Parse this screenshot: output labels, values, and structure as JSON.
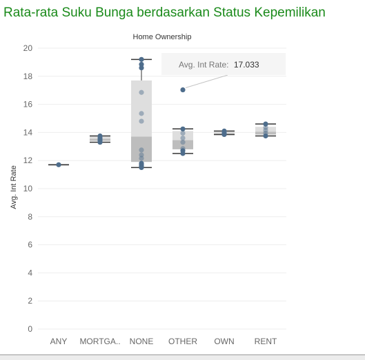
{
  "title": "Rata-rata Suku Bunga berdasarkan Status Kepemilikan",
  "colors": {
    "title": "#1a8a1a",
    "point": "#4e6d8c",
    "box_upper": "#dedede",
    "box_lower": "#bdbdbd",
    "whisker": "#333333",
    "gridline": "#eeeeee",
    "tooltip_bg": "#f5f5f5"
  },
  "chart_data": {
    "type": "box-and-whisker with points",
    "column_header": "Home Ownership",
    "ylabel": "Avg. Int Rate",
    "ylim": [
      0,
      20
    ],
    "yticks": [
      0,
      2,
      4,
      6,
      8,
      10,
      12,
      14,
      16,
      18,
      20
    ],
    "grid": true,
    "categories": [
      "ANY",
      "MORTGA..",
      "NONE",
      "OTHER",
      "OWN",
      "RENT"
    ],
    "points": [
      [
        11.7
      ],
      [
        13.3,
        13.45,
        13.6,
        13.75
      ],
      [
        11.5,
        11.6,
        11.7,
        11.8,
        12.15,
        12.4,
        12.75,
        14.8,
        15.35,
        16.85,
        18.6,
        18.85,
        19.2
      ],
      [
        12.5,
        12.7,
        12.85,
        13.3,
        13.6,
        13.95,
        14.25,
        17.033
      ],
      [
        13.85,
        13.95,
        14.1
      ],
      [
        13.75,
        13.95,
        14.15,
        14.35,
        14.6
      ]
    ],
    "boxes": [
      {
        "min": 11.7,
        "q1": 11.7,
        "median": 11.7,
        "q3": 11.7,
        "max": 11.7
      },
      {
        "min": 13.3,
        "q1": 13.4,
        "median": 13.55,
        "q3": 13.7,
        "max": 13.75
      },
      {
        "min": 11.5,
        "q1": 11.9,
        "median": 13.7,
        "q3": 17.7,
        "max": 19.2
      },
      {
        "min": 12.5,
        "q1": 12.8,
        "median": 13.45,
        "q3": 14.1,
        "max": 14.25
      },
      {
        "min": 13.85,
        "q1": 13.9,
        "median": 13.95,
        "q3": 14.05,
        "max": 14.1
      },
      {
        "min": 13.75,
        "q1": 13.85,
        "median": 14.05,
        "q3": 14.4,
        "max": 14.6
      }
    ],
    "tooltip": {
      "label": "Avg. Int Rate:",
      "value": "17.033",
      "category_index": 3,
      "point_value": 17.033
    }
  }
}
